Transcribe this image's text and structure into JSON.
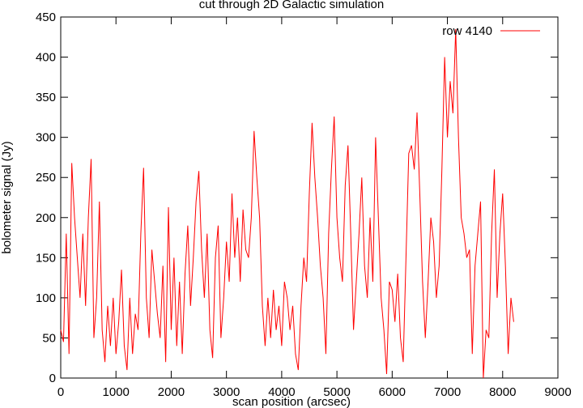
{
  "chart_data": {
    "type": "line",
    "title": "cut through 2D Galactic simulation",
    "x_label": "scan position (arcsec)",
    "y_label": "bolometer signal (Jy)",
    "legend": "top-right",
    "xlim": [
      0,
      9000
    ],
    "ylim": [
      0,
      450
    ],
    "xticks": [
      0,
      1000,
      2000,
      3000,
      4000,
      5000,
      6000,
      7000,
      8000,
      9000
    ],
    "yticks": [
      0,
      50,
      100,
      150,
      200,
      250,
      300,
      350,
      400,
      450
    ],
    "x": [
      0,
      50,
      100,
      150,
      200,
      250,
      300,
      350,
      400,
      450,
      500,
      550,
      600,
      650,
      700,
      750,
      800,
      850,
      900,
      950,
      1000,
      1050,
      1100,
      1150,
      1200,
      1250,
      1300,
      1350,
      1400,
      1450,
      1500,
      1550,
      1600,
      1650,
      1700,
      1750,
      1800,
      1850,
      1900,
      1950,
      2000,
      2050,
      2100,
      2150,
      2200,
      2250,
      2300,
      2350,
      2400,
      2450,
      2500,
      2550,
      2600,
      2650,
      2700,
      2750,
      2800,
      2850,
      2900,
      2950,
      3000,
      3050,
      3100,
      3150,
      3200,
      3250,
      3300,
      3350,
      3400,
      3450,
      3500,
      3550,
      3600,
      3650,
      3700,
      3750,
      3800,
      3850,
      3900,
      3950,
      4000,
      4050,
      4100,
      4150,
      4200,
      4250,
      4300,
      4350,
      4400,
      4450,
      4500,
      4550,
      4600,
      4650,
      4700,
      4750,
      4800,
      4850,
      4900,
      4950,
      5000,
      5050,
      5100,
      5150,
      5200,
      5250,
      5300,
      5350,
      5400,
      5450,
      5500,
      5550,
      5600,
      5650,
      5700,
      5750,
      5800,
      5850,
      5900,
      5950,
      6000,
      6050,
      6100,
      6150,
      6200,
      6250,
      6300,
      6350,
      6400,
      6450,
      6500,
      6550,
      6600,
      6650,
      6700,
      6750,
      6800,
      6850,
      6900,
      6950,
      7000,
      7050,
      7100,
      7150,
      7200,
      7250,
      7300,
      7350,
      7400,
      7450,
      7500,
      7550,
      7600,
      7650,
      7700,
      7750,
      7800,
      7850,
      7900,
      7950,
      8000,
      8050,
      8100,
      8150,
      8200
    ],
    "series": [
      {
        "name": "row 4140",
        "color": "#ff0000",
        "values": [
          60,
          45,
          180,
          30,
          268,
          200,
          150,
          100,
          180,
          90,
          200,
          273,
          50,
          100,
          220,
          60,
          20,
          90,
          40,
          100,
          30,
          70,
          135,
          40,
          10,
          100,
          30,
          80,
          60,
          180,
          262,
          100,
          50,
          160,
          120,
          80,
          50,
          140,
          20,
          213,
          60,
          150,
          40,
          120,
          30,
          130,
          190,
          90,
          150,
          220,
          258,
          160,
          100,
          180,
          60,
          25,
          150,
          190,
          50,
          100,
          170,
          120,
          230,
          150,
          200,
          120,
          210,
          160,
          150,
          200,
          308,
          250,
          200,
          90,
          40,
          100,
          50,
          110,
          60,
          90,
          40,
          120,
          100,
          60,
          90,
          30,
          10,
          90,
          150,
          120,
          230,
          318,
          250,
          200,
          140,
          100,
          30,
          180,
          260,
          326,
          200,
          150,
          120,
          240,
          290,
          180,
          60,
          120,
          180,
          250,
          140,
          100,
          200,
          120,
          300,
          200,
          100,
          60,
          5,
          120,
          110,
          70,
          130,
          50,
          20,
          150,
          280,
          290,
          260,
          331,
          230,
          120,
          50,
          120,
          200,
          170,
          100,
          140,
          260,
          400,
          300,
          370,
          330,
          435,
          300,
          200,
          180,
          150,
          160,
          30,
          140,
          180,
          220,
          0,
          60,
          50,
          180,
          260,
          100,
          180,
          230,
          140,
          30,
          100,
          70
        ]
      }
    ]
  }
}
